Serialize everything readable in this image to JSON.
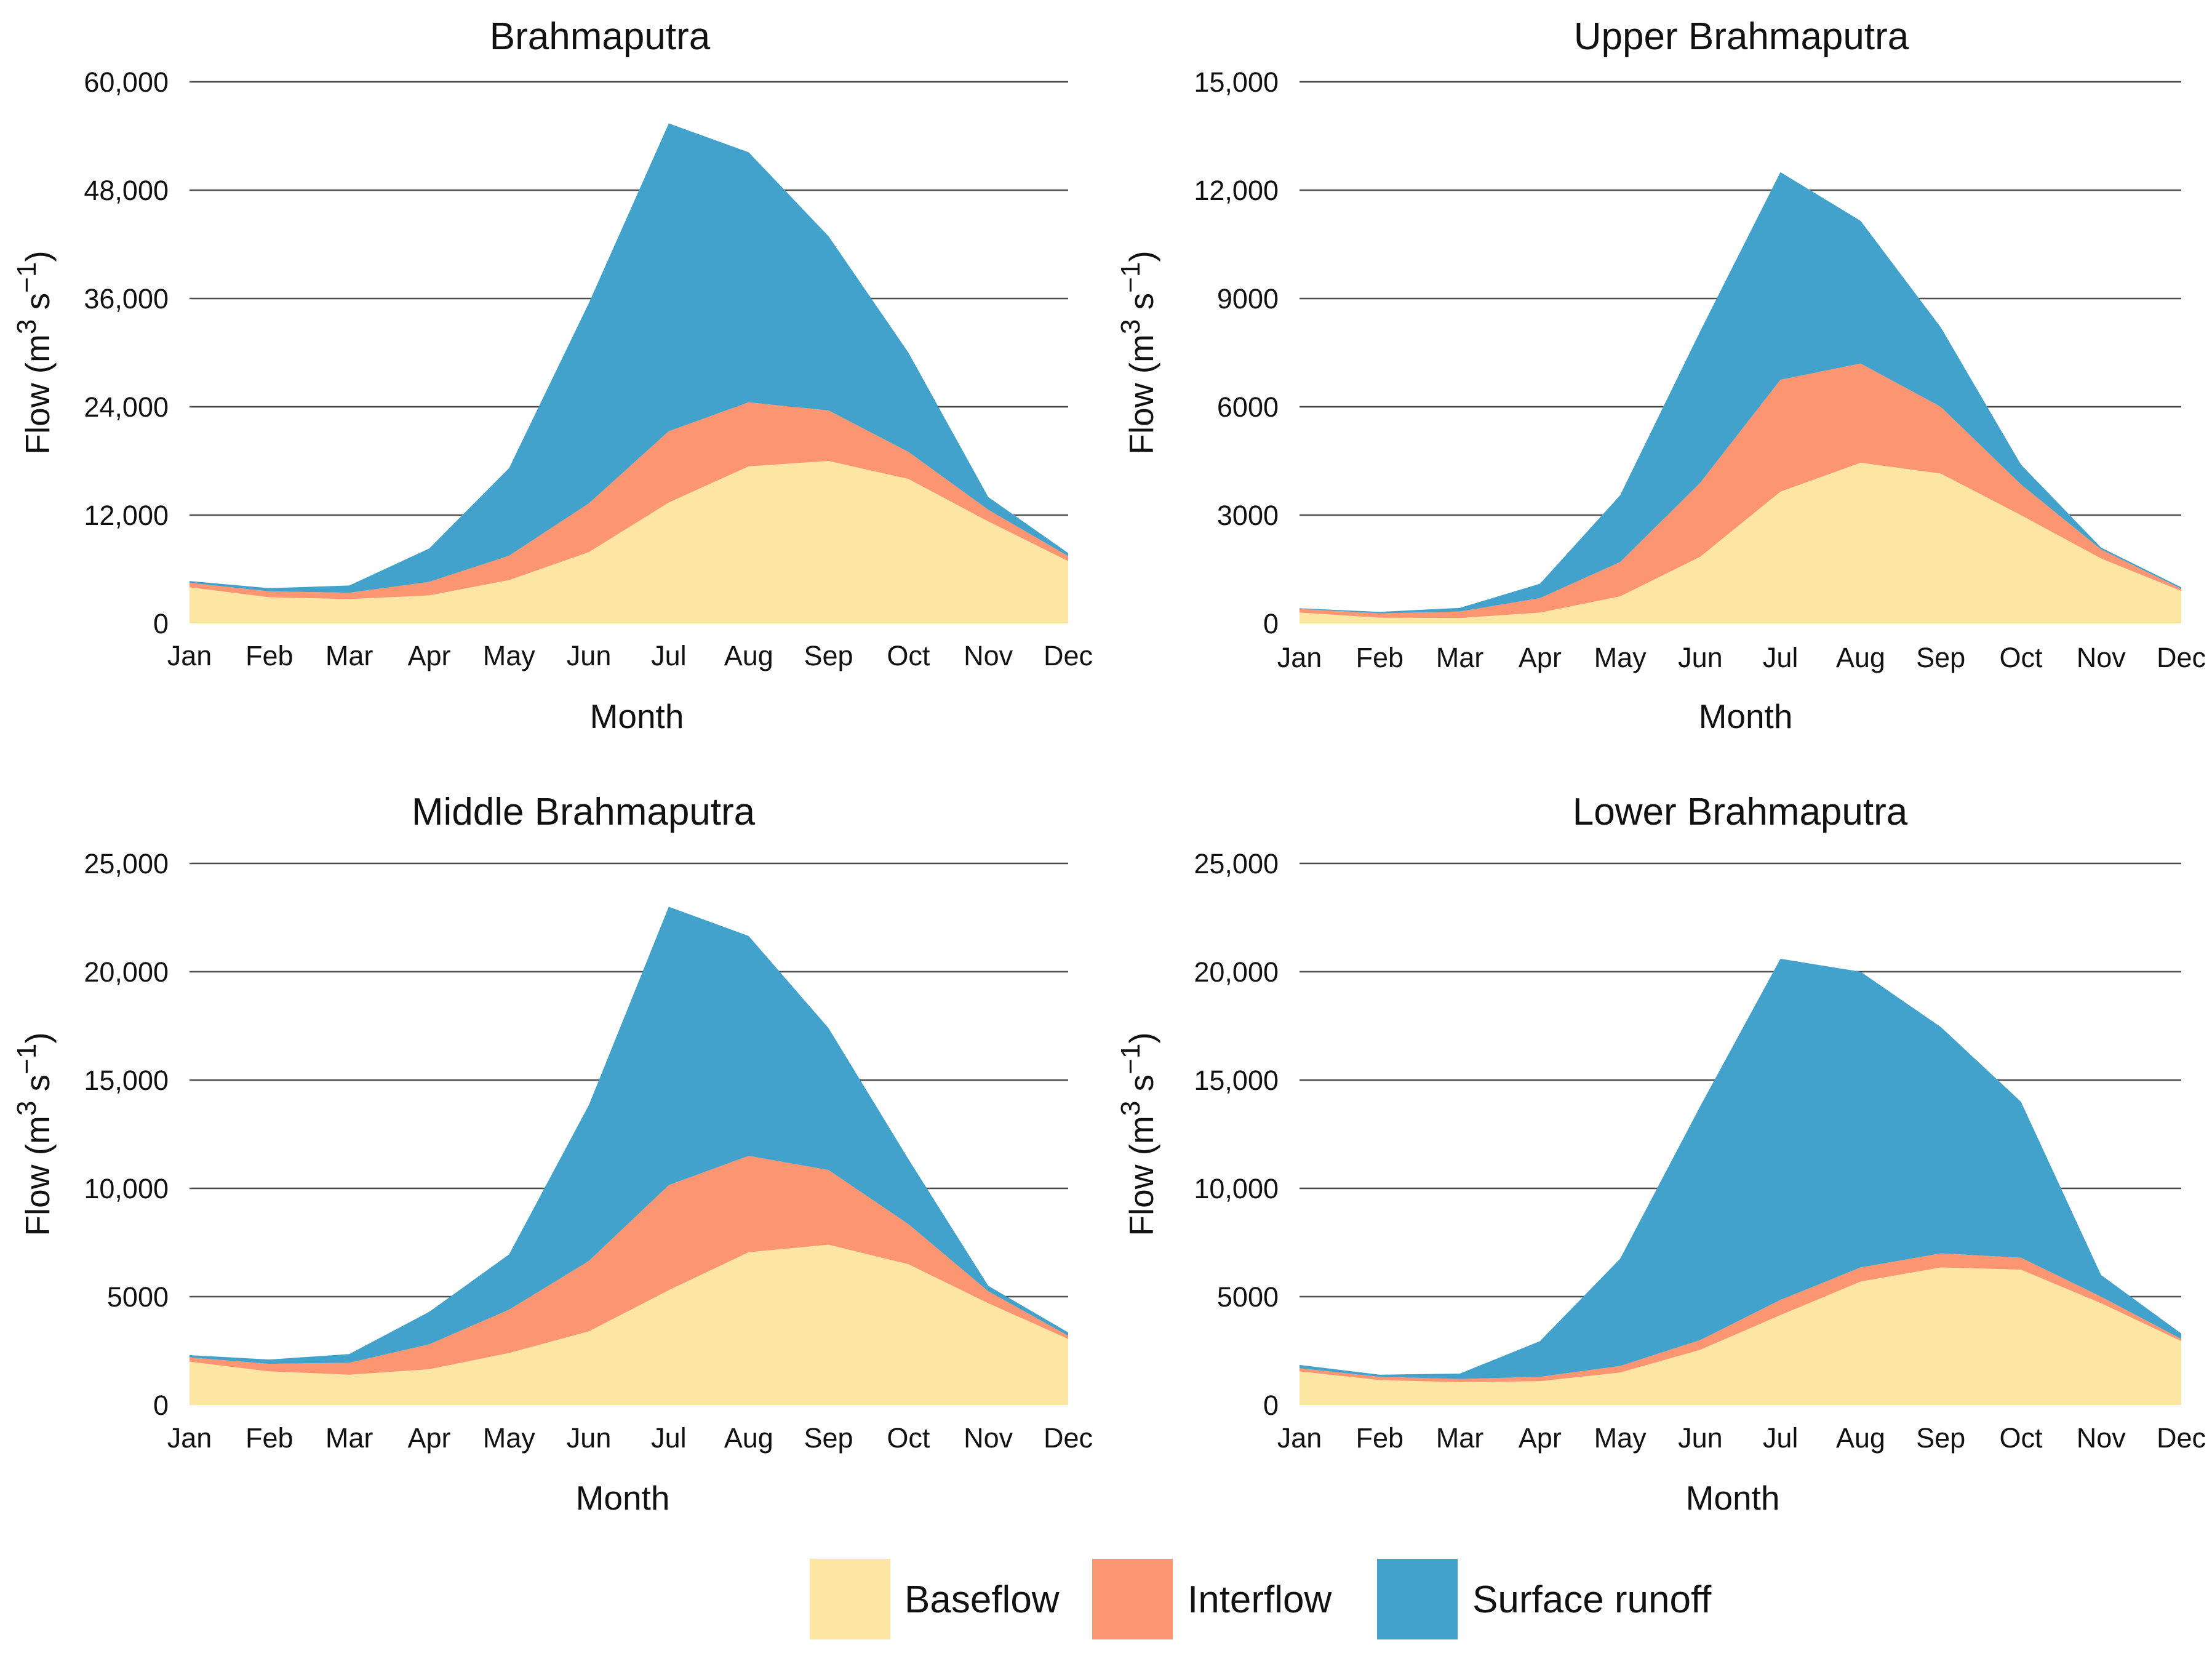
{
  "chart_data": {
    "type": "area",
    "stacked": true,
    "months": [
      "Jan",
      "Feb",
      "Mar",
      "Apr",
      "May",
      "Jun",
      "Jul",
      "Aug",
      "Sep",
      "Oct",
      "Nov",
      "Dec"
    ],
    "colors": {
      "Baseflow": "#fde5a3",
      "Interflow": "#fb9572",
      "Surface runoff": "#43a2cb"
    },
    "legend": {
      "position": "bottom",
      "items": [
        "Baseflow",
        "Interflow",
        "Surface runoff"
      ]
    },
    "panels": [
      {
        "title": "Brahmaputra",
        "xlabel": "Month",
        "ylabel_main": "Flow (m",
        "ylabel_sup1": "3",
        "ylabel_mid": " s",
        "ylabel_sup2": "−1",
        "ylabel_end": ")",
        "ylim": [
          0,
          60000
        ],
        "yticks": [
          0,
          12000,
          24000,
          36000,
          48000,
          60000
        ],
        "ytick_labels": [
          "0",
          "12,000",
          "24,000",
          "36,000",
          "48,000",
          "60,000"
        ],
        "series": [
          {
            "name": "Baseflow",
            "values": [
              4000,
              2900,
              2700,
              3100,
              4800,
              7900,
              13400,
              17400,
              18000,
              16000,
              11300,
              6900
            ]
          },
          {
            "name": "Interflow",
            "values": [
              500,
              650,
              700,
              1500,
              2700,
              5400,
              7900,
              7100,
              5600,
              3000,
              1300,
              550
            ]
          },
          {
            "name": "Surface runoff",
            "values": [
              200,
              350,
              800,
              3700,
              9700,
              22200,
              34100,
              27700,
              19300,
              11000,
              1400,
              350
            ]
          }
        ]
      },
      {
        "title": "Upper Brahmaputra",
        "xlabel": "Month",
        "ylabel_main": "Flow (m",
        "ylabel_sup1": "3",
        "ylabel_mid": " s",
        "ylabel_sup2": "−1",
        "ylabel_end": ")",
        "ylim": [
          0,
          15000
        ],
        "yticks": [
          0,
          3000,
          6000,
          9000,
          12000,
          15000
        ],
        "ytick_labels": [
          "0",
          "3000",
          "6000",
          "9000",
          "12,000",
          "15,000"
        ],
        "series": [
          {
            "name": "Baseflow",
            "values": [
              300,
              160,
              150,
              300,
              750,
              1850,
              3650,
              4450,
              4150,
              3000,
              1800,
              900
            ]
          },
          {
            "name": "Interflow",
            "values": [
              100,
              120,
              180,
              400,
              950,
              2050,
              3100,
              2750,
              1850,
              850,
              250,
              60
            ]
          },
          {
            "name": "Surface runoff",
            "values": [
              20,
              40,
              100,
              400,
              1850,
              4200,
              5750,
              3950,
              2200,
              550,
              50,
              40
            ]
          }
        ]
      },
      {
        "title": "Middle Brahmaputra",
        "xlabel": "Month",
        "ylabel_main": "Flow (m",
        "ylabel_sup1": "3",
        "ylabel_mid": " s",
        "ylabel_sup2": "−1",
        "ylabel_end": ")",
        "ylim": [
          0,
          25000
        ],
        "yticks": [
          0,
          5000,
          10000,
          15000,
          20000,
          25000
        ],
        "ytick_labels": [
          "0",
          "5000",
          "10,000",
          "15,000",
          "20,000",
          "25,000"
        ],
        "series": [
          {
            "name": "Baseflow",
            "values": [
              2000,
              1550,
              1400,
              1650,
              2400,
              3400,
              5300,
              7050,
              7400,
              6500,
              4700,
              3050
            ]
          },
          {
            "name": "Interflow",
            "values": [
              200,
              350,
              550,
              1150,
              2000,
              3250,
              4850,
              4450,
              3450,
              1850,
              550,
              150
            ]
          },
          {
            "name": "Surface runoff",
            "values": [
              100,
              200,
              400,
              1500,
              2550,
              7200,
              12850,
              10150,
              6550,
              3000,
              250,
              150
            ]
          }
        ]
      },
      {
        "title": "Lower Brahmaputra",
        "xlabel": "Month",
        "ylabel_main": "Flow (m",
        "ylabel_sup1": "3",
        "ylabel_mid": " s",
        "ylabel_sup2": "−1",
        "ylabel_end": ")",
        "ylim": [
          0,
          25000
        ],
        "yticks": [
          0,
          5000,
          10000,
          15000,
          20000,
          25000
        ],
        "ytick_labels": [
          "0",
          "5000",
          "10,000",
          "15,000",
          "20,000",
          "25,000"
        ],
        "series": [
          {
            "name": "Baseflow",
            "values": [
              1550,
              1150,
              1050,
              1100,
              1500,
              2550,
              4150,
              5700,
              6350,
              6250,
              4700,
              2950
            ]
          },
          {
            "name": "Interflow",
            "values": [
              150,
              150,
              150,
              200,
              300,
              450,
              700,
              650,
              650,
              550,
              300,
              100
            ]
          },
          {
            "name": "Surface runoff",
            "values": [
              150,
              100,
              250,
              1650,
              4950,
              10800,
              15750,
              13650,
              10450,
              7200,
              1000,
              250
            ]
          }
        ]
      }
    ]
  }
}
